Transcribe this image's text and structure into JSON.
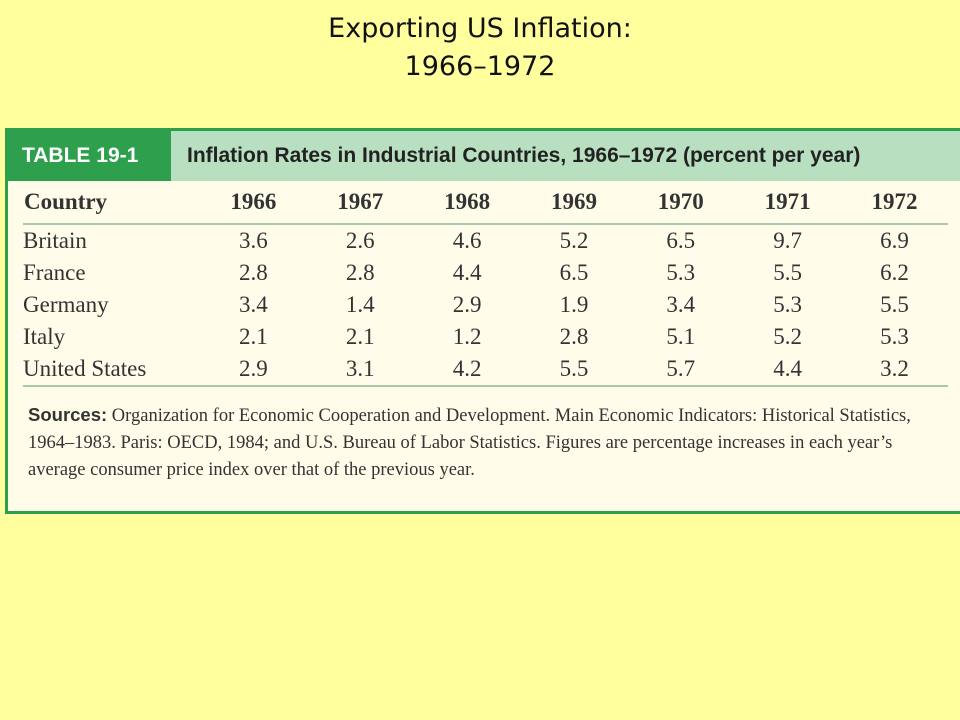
{
  "slide": {
    "title_line1": "Exporting US Inflation:",
    "title_line2": "1966–1972"
  },
  "table": {
    "number": "TABLE 19-1",
    "caption": "Inflation Rates in Industrial Countries, 1966–1972 (percent per year)",
    "header": {
      "country": "Country",
      "years": [
        "1966",
        "1967",
        "1968",
        "1969",
        "1970",
        "1971",
        "1972"
      ]
    },
    "rows": [
      {
        "country": "Britain",
        "values": [
          "3.6",
          "2.6",
          "4.6",
          "5.2",
          "6.5",
          "9.7",
          "6.9"
        ]
      },
      {
        "country": "France",
        "values": [
          "2.8",
          "2.8",
          "4.4",
          "6.5",
          "5.3",
          "5.5",
          "6.2"
        ]
      },
      {
        "country": "Germany",
        "values": [
          "3.4",
          "1.4",
          "2.9",
          "1.9",
          "3.4",
          "5.3",
          "5.5"
        ]
      },
      {
        "country": "Italy",
        "values": [
          "2.1",
          "2.1",
          "1.2",
          "2.8",
          "5.1",
          "5.2",
          "5.3"
        ]
      },
      {
        "country": "United States",
        "values": [
          "2.9",
          "3.1",
          "4.2",
          "5.5",
          "5.7",
          "4.4",
          "3.2"
        ]
      }
    ],
    "sources_label": "Sources:",
    "sources_text": "Organization for Economic Cooperation and Development. Main Economic Indicators: Historical Statistics, 1964–1983. Paris: OECD, 1984; and U.S. Bureau of Labor Statistics. Figures are percentage increases in each year’s average consumer price index over that of the previous year."
  },
  "colors": {
    "slide_background": "#ffff9e",
    "table_accent": "#2e9f4d",
    "caption_band": "#b7dfc0"
  }
}
